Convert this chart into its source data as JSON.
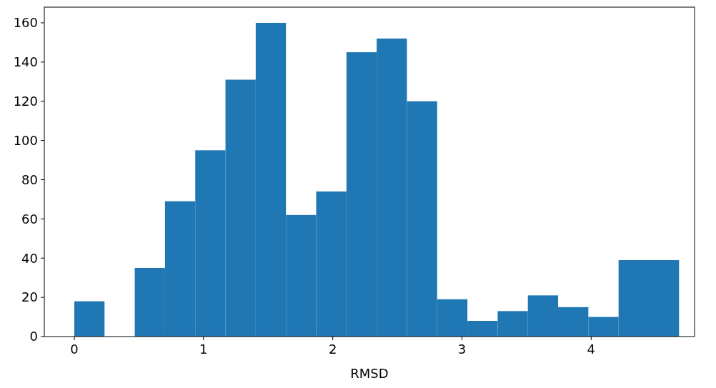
{
  "chart_data": {
    "type": "histogram",
    "xlabel": "RMSD",
    "bins": [
      0,
      0.234,
      0.468,
      0.702,
      0.936,
      1.17,
      1.404,
      1.638,
      1.872,
      2.106,
      2.34,
      2.574,
      2.808,
      3.042,
      3.276,
      3.51,
      3.744,
      3.978,
      4.212,
      4.446,
      4.68
    ],
    "values": [
      18,
      0,
      35,
      69,
      95,
      131,
      160,
      62,
      74,
      145,
      152,
      120,
      19,
      8,
      13,
      21,
      15,
      10,
      39,
      39
    ],
    "color": "#1f77b4",
    "xlim": [
      -0.232,
      4.8
    ],
    "xticks": [
      0,
      1,
      2,
      3,
      4
    ],
    "ylim": [
      0,
      168
    ],
    "yticks": [
      0,
      20,
      40,
      60,
      80,
      100,
      120,
      140,
      160
    ],
    "grid": false
  }
}
